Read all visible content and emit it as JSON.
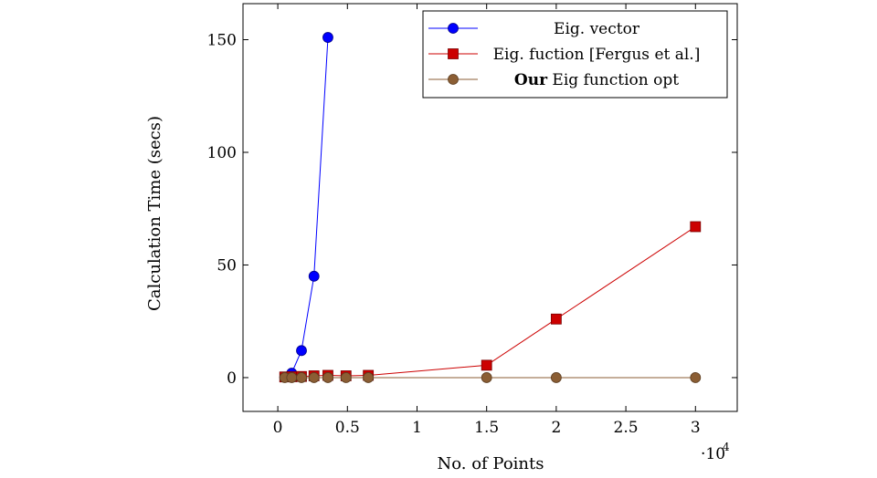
{
  "chart_data": {
    "type": "line",
    "xlabel": "No. of Points",
    "ylabel": "Calculation Time (secs)",
    "x_multiplier_label": "·10",
    "x_multiplier_exponent": "4",
    "xlim": [
      -0.25,
      3.3
    ],
    "ylim": [
      -15,
      166
    ],
    "x_ticks": [
      0,
      0.5,
      1,
      1.5,
      2,
      2.5,
      3
    ],
    "x_tick_labels": [
      "0",
      "0.5",
      "1",
      "1.5",
      "2",
      "2.5",
      "3"
    ],
    "y_ticks": [
      0,
      50,
      100,
      150
    ],
    "y_tick_labels": [
      "0",
      "50",
      "100",
      "150"
    ],
    "legend_position": "top-right",
    "grid": false,
    "series": [
      {
        "name": "Eig. vector",
        "name_bold_prefix": "",
        "color": "#0000ff",
        "marker": "circle",
        "x": [
          0.05,
          0.1,
          0.17,
          0.26,
          0.36
        ],
        "y": [
          0.2,
          2,
          12,
          45,
          151
        ]
      },
      {
        "name": "Eig. fuction [Fergus et al.]",
        "name_bold_prefix": "",
        "color": "#cc0000",
        "marker": "square",
        "x": [
          0.05,
          0.1,
          0.17,
          0.26,
          0.36,
          0.49,
          0.65,
          1.5,
          2.0,
          3.0
        ],
        "y": [
          0.3,
          0.4,
          0.5,
          0.8,
          1.0,
          0.8,
          1.0,
          5.5,
          26,
          67
        ]
      },
      {
        "name": " Eig function opt",
        "name_bold_prefix": "Our",
        "color": "#8b5e34",
        "marker": "circle",
        "x": [
          0.05,
          0.1,
          0.17,
          0.26,
          0.36,
          0.49,
          0.65,
          1.5,
          2.0,
          3.0
        ],
        "y": [
          0,
          0,
          0,
          0,
          0,
          0,
          0,
          0,
          0,
          0
        ]
      }
    ]
  }
}
